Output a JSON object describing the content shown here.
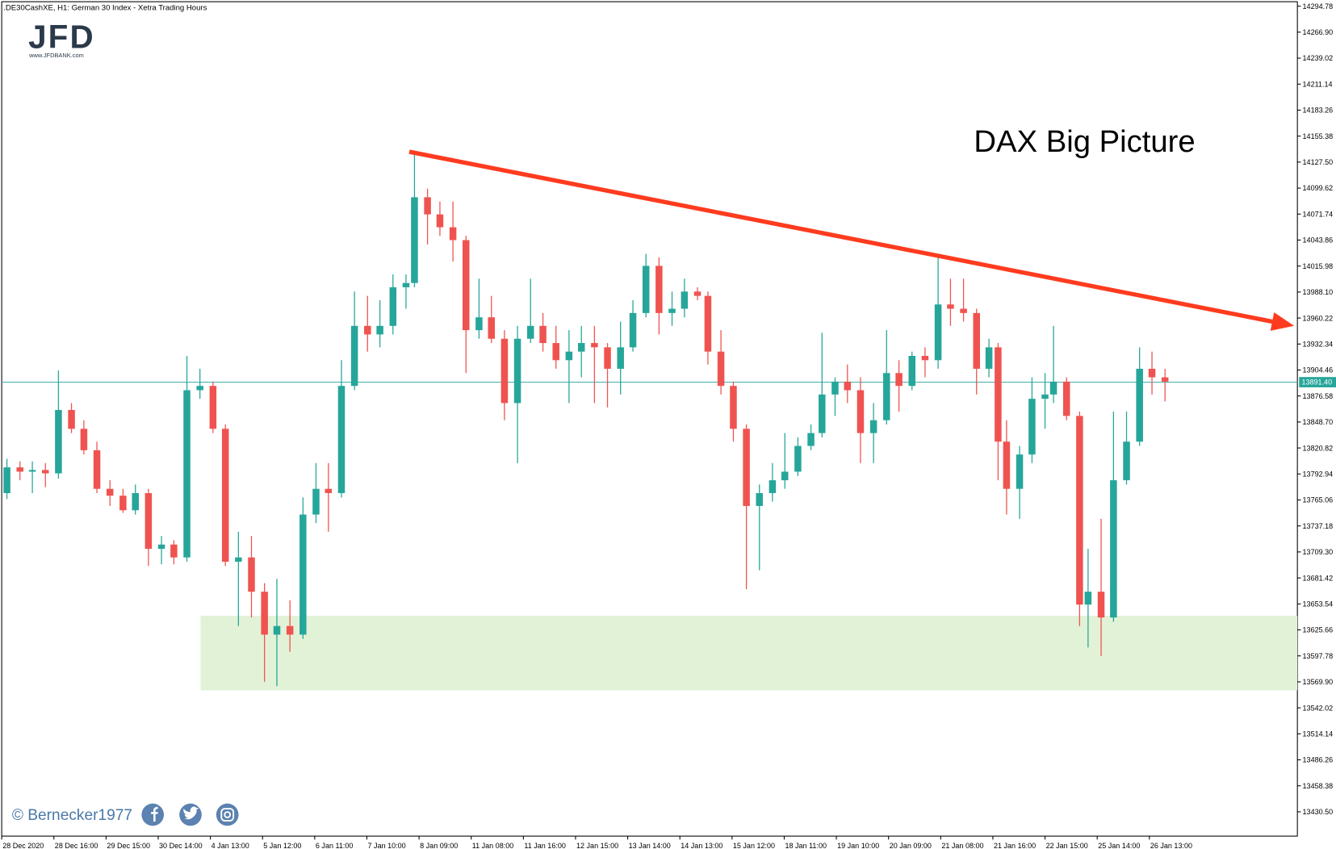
{
  "chart_data": {
    "type": "candlestick",
    "title": ".DE30CashXE, H1:  German 30 Index  - Xetra Trading Hours",
    "annotation": "DAX Big Picture",
    "watermark": "© Bernecker1977",
    "logo": {
      "text": "JFD",
      "url": "www.JFDBANK.com"
    },
    "bull_color": "#26a69a",
    "bear_color": "#ef5350",
    "xlim": [
      0,
      198.7
    ],
    "ylim": [
      13404.4,
      14301.4
    ],
    "x": [
      0.8,
      2.8,
      4.7,
      6.7,
      8.7,
      10.7,
      12.6,
      14.6,
      16.6,
      18.6,
      20.5,
      22.5,
      24.5,
      26.4,
      28.4,
      30.4,
      32.4,
      34.3,
      36.3,
      38.3,
      40.3,
      42.2,
      44.2,
      46.2,
      48.2,
      50.1,
      52.1,
      54.1,
      56.1,
      58.0,
      60.0,
      62.0,
      63.3,
      65.3,
      67.2,
      69.2,
      71.2,
      73.2,
      75.1,
      77.1,
      79.1,
      81.1,
      83.0,
      85.0,
      87.0,
      88.9,
      90.9,
      92.9,
      94.9,
      96.8,
      98.8,
      100.8,
      102.8,
      104.7,
      106.7,
      108.3,
      110.3,
      112.2,
      114.2,
      116.2,
      118.2,
      120.1,
      122.1,
      124.1,
      125.8,
      127.8,
      129.7,
      131.7,
      133.7,
      135.7,
      137.6,
      139.6,
      141.6,
      143.6,
      145.5,
      147.5,
      149.5,
      151.4,
      152.8,
      154.1,
      156.1,
      158.0,
      160.0,
      161.3,
      163.3,
      165.3,
      166.6,
      168.6,
      170.5,
      172.5,
      174.5,
      176.4,
      178.4
    ],
    "open": [
      13772.4,
      13800.0,
      13795.4,
      13797.2,
      13793.6,
      13861.6,
      13841.4,
      13818.4,
      13777.0,
      13769.6,
      13754.0,
      13772.4,
      13712.6,
      13717.2,
      13703.4,
      13882.8,
      13887.4,
      13841.4,
      13698.8,
      13703.4,
      13666.6,
      13620.6,
      13629.8,
      13620.6,
      13749.4,
      13777.0,
      13772.4,
      13887.4,
      13951.8,
      13942.6,
      13951.8,
      13993.2,
      13997.8,
      14089.8,
      14071.4,
      14057.6,
      14043.8,
      13947.2,
      13961.0,
      13938.0,
      13869.0,
      13938.0,
      13951.8,
      13933.4,
      13915.0,
      13924.2,
      13933.4,
      13928.8,
      13905.8,
      13928.8,
      13965.6,
      14016.2,
      13965.6,
      13970.2,
      13988.6,
      13984.0,
      13924.2,
      13887.4,
      13841.4,
      13758.6,
      13772.4,
      13786.2,
      13795.4,
      13823.0,
      13836.8,
      13878.2,
      13892.0,
      13882.8,
      13836.8,
      13850.6,
      13901.2,
      13887.4,
      13919.6,
      13915.0,
      13974.8,
      13970.2,
      13965.6,
      13905.8,
      13928.8,
      13827.6,
      13777.0,
      13813.8,
      13873.6,
      13878.2,
      13892.0,
      13855.2,
      13652.8,
      13666.6,
      13639.0,
      13786.2,
      13827.6,
      13905.8,
      13896.6
    ],
    "high": [
      13809.2,
      13806.4,
      13806.4,
      13804.6,
      13904.0,
      13869.0,
      13850.6,
      13827.6,
      13786.2,
      13777.0,
      13781.6,
      13777.0,
      13726.4,
      13721.8,
      13919.6,
      13905.8,
      13892.0,
      13846.0,
      13731.0,
      13726.4,
      13675.8,
      13680.4,
      13657.4,
      13767.8,
      13804.6,
      13804.6,
      13915.0,
      13988.6,
      13984.0,
      13979.4,
      14007.0,
      14007.0,
      14137.6,
      14099.0,
      14085.2,
      14085.2,
      14048.4,
      14002.4,
      13984.0,
      13947.2,
      13951.8,
      14002.4,
      13965.6,
      13951.8,
      13947.2,
      13951.8,
      13951.8,
      13933.4,
      13956.4,
      13979.4,
      14029.1,
      14025.4,
      13988.6,
      14002.4,
      13993.2,
      13988.6,
      13947.2,
      13892.0,
      13846.0,
      13781.6,
      13804.6,
      13836.8,
      13832.2,
      13846.0,
      13944.4,
      13896.6,
      13910.4,
      13896.6,
      13869.0,
      13947.2,
      13915.0,
      13924.2,
      13928.8,
      14027.2,
      14002.4,
      14002.4,
      13970.2,
      13938.0,
      13933.4,
      13850.6,
      13823.0,
      13896.6,
      13901.2,
      13951.8,
      13896.6,
      13859.8,
      13712.6,
      13744.8,
      13859.8,
      13859.8,
      13928.8,
      13924.2,
      13905.8
    ],
    "low": [
      13766.0,
      13786.2,
      13772.4,
      13778.8,
      13788.0,
      13836.8,
      13813.8,
      13772.4,
      13758.6,
      13751.2,
      13749.4,
      13694.2,
      13696.0,
      13696.0,
      13698.8,
      13873.6,
      13836.8,
      13694.2,
      13629.8,
      13639.0,
      13570.0,
      13565.4,
      13602.2,
      13616.0,
      13740.2,
      13731.0,
      13767.8,
      13882.8,
      13924.2,
      13928.8,
      13942.6,
      13970.2,
      13993.2,
      14039.2,
      14048.4,
      14020.8,
      13901.2,
      13938.0,
      13933.4,
      13850.6,
      13804.6,
      13933.4,
      13924.2,
      13905.8,
      13869.0,
      13896.6,
      13869.0,
      13864.4,
      13878.2,
      13924.2,
      13961.0,
      13942.6,
      13951.8,
      13961.0,
      13979.4,
      13910.4,
      13878.2,
      13827.6,
      13669.4,
      13689.6,
      13763.2,
      13777.0,
      13790.8,
      13818.4,
      13832.2,
      13855.2,
      13869.0,
      13804.6,
      13804.6,
      13846.0,
      13859.8,
      13882.8,
      13896.6,
      13905.8,
      13951.8,
      13956.4,
      13878.2,
      13896.6,
      13786.2,
      13749.4,
      13744.8,
      13804.6,
      13841.4,
      13869.0,
      13850.6,
      13629.8,
      13606.8,
      13597.6,
      13634.4,
      13781.6,
      13823.0,
      13878.2,
      13870.8
    ],
    "close": [
      13800.0,
      13795.4,
      13797.2,
      13793.6,
      13861.6,
      13841.4,
      13818.4,
      13777.0,
      13769.6,
      13754.0,
      13772.4,
      13712.6,
      13717.2,
      13703.4,
      13882.8,
      13887.4,
      13841.4,
      13698.8,
      13703.4,
      13666.6,
      13620.6,
      13629.8,
      13620.6,
      13749.4,
      13777.0,
      13772.4,
      13887.4,
      13951.8,
      13942.6,
      13951.8,
      13993.2,
      13997.8,
      14089.8,
      14071.4,
      14057.6,
      14043.8,
      13947.2,
      13961.0,
      13938.0,
      13869.0,
      13938.0,
      13951.8,
      13933.4,
      13915.0,
      13924.2,
      13933.4,
      13928.8,
      13905.8,
      13928.8,
      13965.6,
      14016.2,
      13965.6,
      13970.2,
      13988.6,
      13984.0,
      13924.2,
      13887.4,
      13841.4,
      13758.6,
      13772.4,
      13786.2,
      13795.4,
      13823.0,
      13836.8,
      13878.2,
      13892.0,
      13882.8,
      13836.8,
      13850.6,
      13901.2,
      13887.4,
      13919.6,
      13915.0,
      13974.8,
      13970.2,
      13965.6,
      13905.8,
      13928.8,
      13827.6,
      13777.0,
      13813.8,
      13873.6,
      13878.2,
      13892.0,
      13855.2,
      13652.8,
      13666.6,
      13639.0,
      13786.2,
      13827.6,
      13905.8,
      13896.6,
      13892.0
    ],
    "current_price": {
      "value": 13891.4,
      "label": "13891.40"
    },
    "trendline": {
      "x": [
        62.5,
        198.2
      ],
      "y": [
        14138.6,
        13951.8
      ],
      "color": "#ff3b1f"
    },
    "support_zone": {
      "x": [
        30.5,
        198.7
      ],
      "y": [
        13560.8,
        13640.8
      ],
      "color": "#e2f2d6"
    },
    "yticks": [
      {
        "value": 14294.78,
        "label": "14294.78"
      },
      {
        "value": 14266.9,
        "label": "14266.90"
      },
      {
        "value": 14239.02,
        "label": "14239.02"
      },
      {
        "value": 14211.14,
        "label": "14211.14"
      },
      {
        "value": 14183.26,
        "label": "14183.26"
      },
      {
        "value": 14155.38,
        "label": "14155.38"
      },
      {
        "value": 14127.5,
        "label": "14127.50"
      },
      {
        "value": 14099.62,
        "label": "14099.62"
      },
      {
        "value": 14071.74,
        "label": "14071.74"
      },
      {
        "value": 14043.86,
        "label": "14043.86"
      },
      {
        "value": 14015.98,
        "label": "14015.98"
      },
      {
        "value": 13988.1,
        "label": "13988.10"
      },
      {
        "value": 13960.22,
        "label": "13960.22"
      },
      {
        "value": 13932.34,
        "label": "13932.34"
      },
      {
        "value": 13904.46,
        "label": "13904.46"
      },
      {
        "value": 13876.58,
        "label": "13876.58"
      },
      {
        "value": 13848.7,
        "label": "13848.70"
      },
      {
        "value": 13820.82,
        "label": "13820.82"
      },
      {
        "value": 13792.94,
        "label": "13792.94"
      },
      {
        "value": 13765.06,
        "label": "13765.06"
      },
      {
        "value": 13737.18,
        "label": "13737.18"
      },
      {
        "value": 13709.3,
        "label": "13709.30"
      },
      {
        "value": 13681.42,
        "label": "13681.42"
      },
      {
        "value": 13653.54,
        "label": "13653.54"
      },
      {
        "value": 13625.66,
        "label": "13625.66"
      },
      {
        "value": 13597.78,
        "label": "13597.78"
      },
      {
        "value": 13569.9,
        "label": "13569.90"
      },
      {
        "value": 13542.02,
        "label": "13542.02"
      },
      {
        "value": 13514.14,
        "label": "13514.14"
      },
      {
        "value": 13486.26,
        "label": "13486.26"
      },
      {
        "value": 13458.38,
        "label": "13458.38"
      },
      {
        "value": 13430.5,
        "label": "13430.50"
      }
    ],
    "xticks": [
      {
        "value": 0,
        "label": "28 Dec 2020"
      },
      {
        "value": 8,
        "label": "28 Dec 16:00"
      },
      {
        "value": 16,
        "label": "29 Dec 15:00"
      },
      {
        "value": 24,
        "label": "30 Dec 14:00"
      },
      {
        "value": 32,
        "label": "4 Jan 13:00"
      },
      {
        "value": 40,
        "label": "5 Jan 12:00"
      },
      {
        "value": 48,
        "label": "6 Jan 11:00"
      },
      {
        "value": 56,
        "label": "7 Jan 10:00"
      },
      {
        "value": 64,
        "label": "8 Jan 09:00"
      },
      {
        "value": 72,
        "label": "11 Jan 08:00"
      },
      {
        "value": 80,
        "label": "11 Jan 16:00"
      },
      {
        "value": 88,
        "label": "12 Jan 15:00"
      },
      {
        "value": 96,
        "label": "13 Jan 14:00"
      },
      {
        "value": 104,
        "label": "14 Jan 13:00"
      },
      {
        "value": 112,
        "label": "15 Jan 12:00"
      },
      {
        "value": 120,
        "label": "18 Jan 11:00"
      },
      {
        "value": 128,
        "label": "19 Jan 10:00"
      },
      {
        "value": 136,
        "label": "20 Jan 09:00"
      },
      {
        "value": 144,
        "label": "21 Jan 08:00"
      },
      {
        "value": 152,
        "label": "21 Jan 16:00"
      },
      {
        "value": 160,
        "label": "22 Jan 15:00"
      },
      {
        "value": 168,
        "label": "25 Jan 14:00"
      },
      {
        "value": 176,
        "label": "26 Jan 13:00"
      }
    ]
  }
}
